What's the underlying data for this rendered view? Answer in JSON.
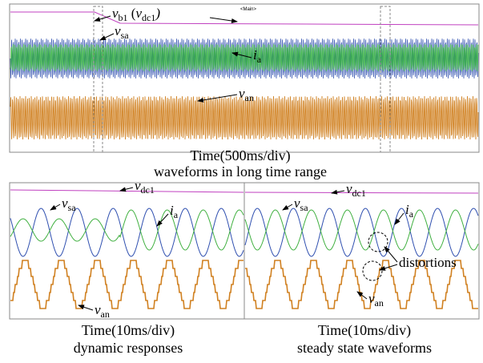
{
  "top_panel": {
    "marker": "<Main>",
    "labels": {
      "vb1": [
        {
          "text": "v"
        },
        {
          "sub": "b1"
        },
        {
          "text": " ("
        },
        {
          "text": "v"
        },
        {
          "sub": "dc1"
        },
        {
          "text": ")"
        }
      ],
      "vsa": [
        {
          "text": "v"
        },
        {
          "sub": "sa"
        }
      ],
      "ia": [
        {
          "text": "i"
        },
        {
          "sub": "a"
        }
      ],
      "van": [
        {
          "text": "v"
        },
        {
          "sub": "an"
        }
      ]
    },
    "caption": [
      "Time(500ms/div)",
      "waveforms in long time range"
    ]
  },
  "left_panel": {
    "labels": {
      "vdc1": [
        {
          "text": "v"
        },
        {
          "sub": "dc1"
        }
      ],
      "vsa": [
        {
          "text": "v"
        },
        {
          "sub": "sa"
        }
      ],
      "ia": [
        {
          "text": "i"
        },
        {
          "sub": "a"
        }
      ],
      "van": [
        {
          "text": "v"
        },
        {
          "sub": "an"
        }
      ]
    },
    "caption": [
      "Time(10ms/div)",
      "dynamic responses"
    ]
  },
  "right_panel": {
    "labels": {
      "vdc1": [
        {
          "text": "v"
        },
        {
          "sub": "dc1"
        }
      ],
      "vsa": [
        {
          "text": "v"
        },
        {
          "sub": "sa"
        }
      ],
      "ia": [
        {
          "text": "i"
        },
        {
          "sub": "a"
        }
      ],
      "van": [
        {
          "text": "v"
        },
        {
          "sub": "an"
        }
      ],
      "distortions": [
        {
          "text": "distortions"
        }
      ]
    },
    "caption": [
      "Time(10ms/div)",
      "steady state waveforms"
    ]
  }
}
